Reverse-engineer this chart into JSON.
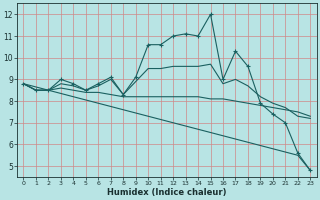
{
  "xlabel": "Humidex (Indice chaleur)",
  "xlim": [
    -0.5,
    23.5
  ],
  "ylim": [
    4.5,
    12.5
  ],
  "yticks": [
    5,
    6,
    7,
    8,
    9,
    10,
    11,
    12
  ],
  "xticks": [
    0,
    1,
    2,
    3,
    4,
    5,
    6,
    7,
    8,
    9,
    10,
    11,
    12,
    13,
    14,
    15,
    16,
    17,
    18,
    19,
    20,
    21,
    22,
    23
  ],
  "bg_color": "#b8e4e4",
  "grid_color": "#d08888",
  "line_color": "#1a6060",
  "line1_markers": [
    8.8,
    8.5,
    8.5,
    9.0,
    8.8,
    8.5,
    8.8,
    9.1,
    8.3,
    9.1,
    10.6,
    10.6,
    11.0,
    11.1,
    11.0,
    12.0,
    9.0,
    10.3,
    9.6,
    7.9,
    7.4,
    7.0,
    5.6,
    4.8
  ],
  "line2_straight": [
    8.8,
    8.65,
    8.5,
    8.35,
    8.2,
    8.05,
    7.9,
    7.75,
    7.6,
    7.45,
    7.3,
    7.15,
    7.0,
    6.85,
    6.7,
    6.55,
    6.4,
    6.25,
    6.1,
    5.95,
    5.8,
    5.65,
    5.5,
    4.8
  ],
  "line3_flat": [
    8.8,
    8.5,
    8.5,
    8.6,
    8.5,
    8.4,
    8.4,
    8.3,
    8.2,
    8.2,
    8.2,
    8.2,
    8.2,
    8.2,
    8.2,
    8.1,
    8.1,
    8.0,
    7.9,
    7.8,
    7.7,
    7.6,
    7.5,
    7.3
  ],
  "line4_mid": [
    8.8,
    8.5,
    8.5,
    8.8,
    8.7,
    8.5,
    8.7,
    9.0,
    8.3,
    8.9,
    9.5,
    9.5,
    9.6,
    9.6,
    9.6,
    9.7,
    8.8,
    9.0,
    8.7,
    8.2,
    7.9,
    7.7,
    7.3,
    7.2
  ]
}
